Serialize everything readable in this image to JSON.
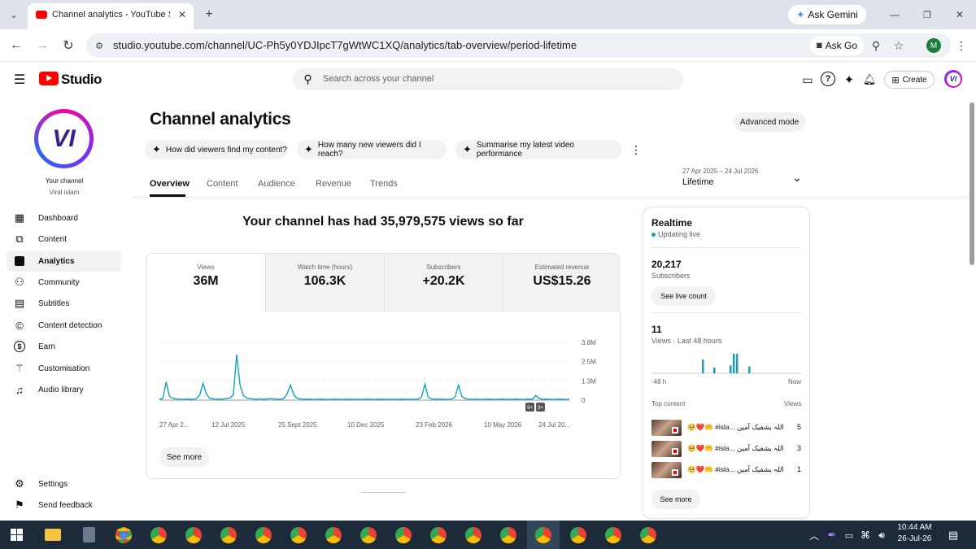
{
  "browser": {
    "tab_title": "Channel analytics - YouTube St",
    "url": "studio.youtube.com/channel/UC-Ph5y0YDJIpcT7gWtWC1XQ/analytics/tab-overview/period-lifetime",
    "ask_gemini": "Ask Gemini",
    "ask_go": "Ask Go",
    "profile_initial": "M"
  },
  "header": {
    "logo_text": "Studio",
    "search_placeholder": "Search across your channel",
    "create_label": "Create"
  },
  "sidebar": {
    "avatar_text": "VI",
    "your_channel": "Your channel",
    "channel_name": "Viral islam",
    "items": [
      {
        "label": "Dashboard",
        "icon": "dashboard-icon"
      },
      {
        "label": "Content",
        "icon": "content-icon"
      },
      {
        "label": "Analytics",
        "icon": "analytics-icon"
      },
      {
        "label": "Community",
        "icon": "community-icon"
      },
      {
        "label": "Subtitles",
        "icon": "subtitles-icon"
      },
      {
        "label": "Content detection",
        "icon": "copyright-icon"
      },
      {
        "label": "Earn",
        "icon": "dollar-icon"
      },
      {
        "label": "Customisation",
        "icon": "magic-wand-icon"
      },
      {
        "label": "Audio library",
        "icon": "audio-library-icon"
      }
    ],
    "settings": "Settings",
    "feedback": "Send feedback"
  },
  "main": {
    "title": "Channel analytics",
    "advanced_mode": "Advanced mode",
    "suggestions": [
      "How did viewers find my content?",
      "How many new viewers did I reach?",
      "Summarise my latest video performance"
    ],
    "tabs": [
      "Overview",
      "Content",
      "Audience",
      "Revenue",
      "Trends"
    ],
    "period_range": "27 Apr 2025 – 24 Jul 2026",
    "period_label": "Lifetime",
    "headline": "Your channel has had 35,979,575 views so far",
    "metrics": [
      {
        "label": "Views",
        "value": "36M"
      },
      {
        "label": "Watch time (hours)",
        "value": "106.3K"
      },
      {
        "label": "Subscribers",
        "value": "+20.2K"
      },
      {
        "label": "Estimated revenue",
        "value": "US$15.26"
      }
    ],
    "see_more": "See more",
    "badge_label": "9+"
  },
  "chart_data": {
    "type": "line",
    "x_ticks": [
      "27 Apr 2...",
      "12 Jul 2025",
      "25 Sept 2025",
      "10 Dec 2025",
      "23 Feb 2026",
      "10 May 2026",
      "24 Jul 20..."
    ],
    "y_ticks": [
      "3.8M",
      "2.5M",
      "1.3M",
      "0"
    ],
    "ylim": [
      0,
      3800000
    ],
    "series": [
      {
        "values": [
          0.06,
          0.1,
          1.2,
          0.25,
          0.12,
          0.08,
          0.07,
          0.06,
          0.06,
          0.08,
          0.05,
          0.1,
          0.35,
          1.1,
          0.4,
          0.1,
          0.08,
          0.07,
          0.06,
          0.08,
          0.1,
          0.15,
          0.35,
          3.0,
          1.0,
          0.3,
          0.15,
          0.1,
          0.08,
          0.06,
          0.09,
          0.05,
          0.08,
          0.1,
          0.08,
          0.07,
          0.06,
          0.1,
          0.4,
          1.0,
          0.35,
          0.12,
          0.08,
          0.06,
          0.07,
          0.06,
          0.05,
          0.06,
          0.07,
          0.06,
          0.05,
          0.06,
          0.07,
          0.06,
          0.05,
          0.06,
          0.07,
          0.06,
          0.05,
          0.06,
          0.05,
          0.06,
          0.07,
          0.06,
          0.05,
          0.06,
          0.07,
          0.06,
          0.05,
          0.06,
          0.05,
          0.06,
          0.07,
          0.06,
          0.06,
          0.05,
          0.06,
          0.07,
          0.2,
          1.05,
          0.2,
          0.08,
          0.06,
          0.07,
          0.06,
          0.05,
          0.06,
          0.07,
          0.2,
          1.0,
          0.25,
          0.1,
          0.07,
          0.06,
          0.07,
          0.06,
          0.05,
          0.06,
          0.07,
          0.06,
          0.05,
          0.06,
          0.07,
          0.06,
          0.05,
          0.06,
          0.07,
          0.06,
          0.05,
          0.06,
          0.07,
          0.06,
          0.3,
          0.12,
          0.06,
          0.07,
          0.06,
          0.05,
          0.06,
          0.07,
          0.06,
          0.05,
          0.06
        ]
      }
    ],
    "color": "#12a2c2"
  },
  "realtime": {
    "title": "Realtime",
    "status": "Updating live",
    "subs_value": "20,217",
    "subs_label": "Subscribers",
    "live_count_btn": "See live count",
    "views_value": "11",
    "views_label": "Views · Last 48 hours",
    "axis_left": "-48 h",
    "axis_right": "Now",
    "bars": [
      0,
      0,
      0,
      0,
      0,
      0,
      0,
      0,
      0,
      0,
      0,
      0,
      0,
      0,
      0,
      0,
      0,
      0,
      0,
      0,
      0,
      0,
      0,
      0,
      0,
      0,
      0,
      0,
      0,
      0,
      0,
      0,
      0,
      0,
      0,
      0,
      0,
      0,
      0,
      0,
      0,
      0,
      0,
      0,
      0,
      0,
      0,
      0
    ],
    "bar_spikes": [
      {
        "h": 0.7
      },
      {
        "h": 0.3
      },
      {
        "h": 0.4
      },
      {
        "h": 1.0
      },
      {
        "h": 1.0
      },
      {
        "h": 0.35
      }
    ],
    "top_content_label": "Top content",
    "views_col": "Views",
    "top_items": [
      {
        "title": "🥺❤️🤲 #isla... اللہ یشفیک آمین",
        "views": "5"
      },
      {
        "title": "🥺❤️🤲 #isla... اللہ یشفیک آمین",
        "views": "3"
      },
      {
        "title": "🥺❤️🤲 #isla... اللہ یشفیک آمین",
        "views": "1"
      }
    ],
    "see_more": "See more"
  },
  "taskbar": {
    "time": "10:44 AM",
    "date": "26-Jul-26"
  }
}
